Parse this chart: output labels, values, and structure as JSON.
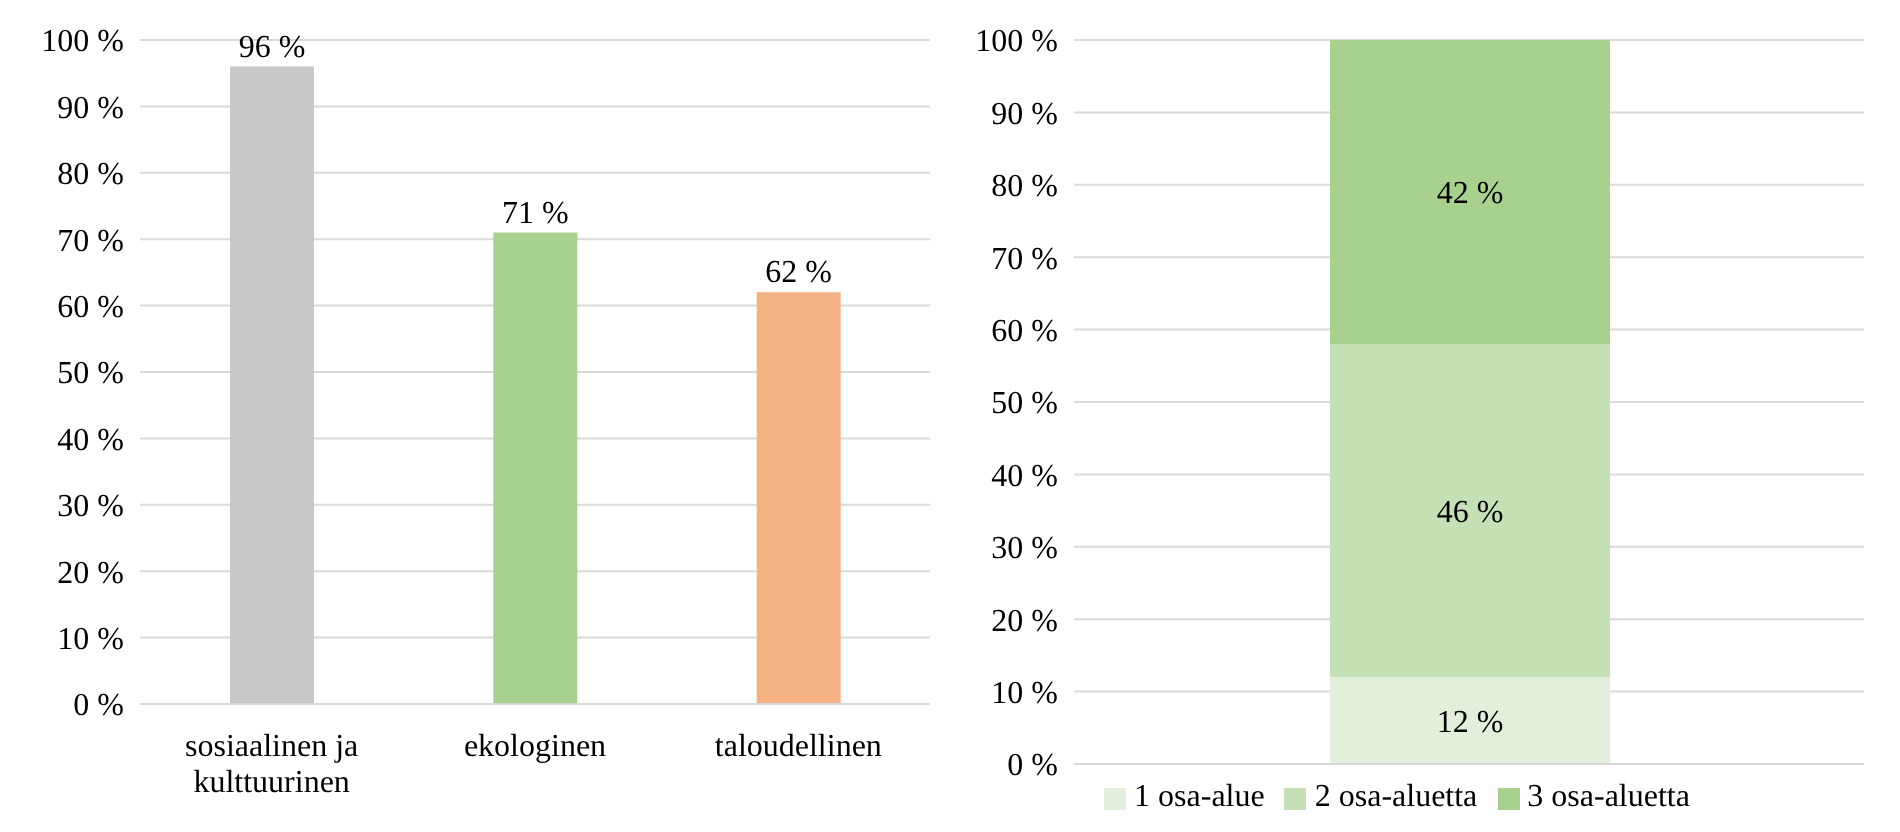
{
  "chart_data": [
    {
      "type": "bar",
      "categories": [
        "sosiaalinen ja kulttuurinen",
        "ekologinen",
        "taloudellinen"
      ],
      "values": [
        96,
        71,
        62
      ],
      "colors": [
        "#c9c9c9",
        "#a9d18e",
        "#f4b183"
      ],
      "value_labels": [
        "96 %",
        "71 %",
        "62 %"
      ],
      "ylim": [
        0,
        100
      ],
      "yticks": [
        {
          "value": 0,
          "label": "0 %"
        },
        {
          "value": 10,
          "label": "10 %"
        },
        {
          "value": 20,
          "label": "20 %"
        },
        {
          "value": 30,
          "label": "30 %"
        },
        {
          "value": 40,
          "label": "40 %"
        },
        {
          "value": 50,
          "label": "50 %"
        },
        {
          "value": 60,
          "label": "60 %"
        },
        {
          "value": 70,
          "label": "70 %"
        },
        {
          "value": 80,
          "label": "80 %"
        },
        {
          "value": 90,
          "label": "90 %"
        },
        {
          "value": 100,
          "label": "100 %"
        }
      ],
      "grid": "y",
      "legend": false
    },
    {
      "type": "bar",
      "stacked": true,
      "categories": [
        null
      ],
      "series": [
        {
          "name": "1 osa-alue",
          "color": "#e2efda",
          "values": [
            12
          ],
          "value_labels": [
            "12 %"
          ]
        },
        {
          "name": "2 osa-aluetta",
          "color": "#c5e0b4",
          "values": [
            46
          ],
          "value_labels": [
            "46 %"
          ]
        },
        {
          "name": "3 osa-aluetta",
          "color": "#a9d18e",
          "values": [
            42
          ],
          "value_labels": [
            "42 %"
          ]
        }
      ],
      "ylim": [
        0,
        100
      ],
      "yticks": [
        {
          "value": 0,
          "label": "0 %"
        },
        {
          "value": 10,
          "label": "10 %"
        },
        {
          "value": 20,
          "label": "20 %"
        },
        {
          "value": 30,
          "label": "30 %"
        },
        {
          "value": 40,
          "label": "40 %"
        },
        {
          "value": 50,
          "label": "50 %"
        },
        {
          "value": 60,
          "label": "60 %"
        },
        {
          "value": 70,
          "label": "70 %"
        },
        {
          "value": 80,
          "label": "80 %"
        },
        {
          "value": 90,
          "label": "90 %"
        },
        {
          "value": 100,
          "label": "100 %"
        }
      ],
      "grid": "y",
      "legend": "bottom"
    }
  ]
}
